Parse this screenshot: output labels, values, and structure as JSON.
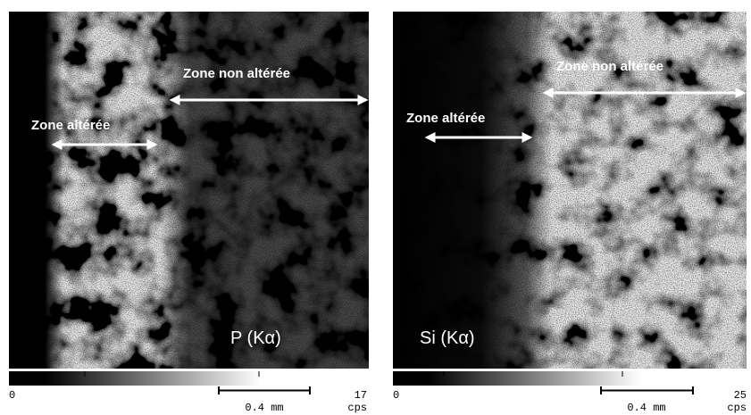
{
  "panels": [
    {
      "element": "P (Kα)",
      "zone_altered": "Zone altérée",
      "zone_unaltered": "Zone non altérée",
      "scale_min": 0,
      "scale_max": 17,
      "scale_bar": "0.4 mm",
      "unit": "cps"
    },
    {
      "element": "Si (Kα)",
      "zone_altered": "Zone altérée",
      "zone_unaltered": "Zone non altérée",
      "scale_min": 0,
      "scale_max": 25,
      "scale_bar": "0.4 mm",
      "unit": "cps"
    }
  ]
}
